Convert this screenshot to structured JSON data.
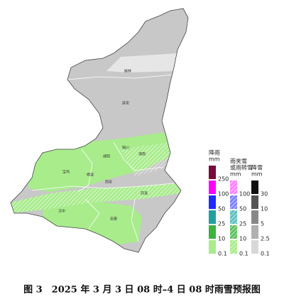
{
  "caption": "图 3　2025 年 3 月 3 日 08 时–4 日 08 时雨雪预报图",
  "cities": [
    {
      "label": "榆林"
    },
    {
      "label": "延安"
    },
    {
      "label": "铜川"
    },
    {
      "label": "渭南"
    },
    {
      "label": "宝鸡"
    },
    {
      "label": "杨凌"
    },
    {
      "label": "咸阳"
    },
    {
      "label": "西安"
    },
    {
      "label": "商洛"
    },
    {
      "label": "汉中"
    },
    {
      "label": "安康"
    }
  ],
  "legend": [
    {
      "title": [
        "降雨"
      ],
      "unit": "mm",
      "hatch": false,
      "levels": [
        {
          "value": 250,
          "color": "#7a0a3c"
        },
        {
          "value": 100,
          "color": "#ff00ff"
        },
        {
          "value": 50,
          "color": "#1e2cff"
        },
        {
          "value": 25,
          "color": "#1fa0a0"
        },
        {
          "value": 10,
          "color": "#3cb43c"
        },
        {
          "value": 0.1,
          "color": "#a8ec8c"
        }
      ]
    },
    {
      "title": [
        "雨夹雪",
        "或雨转雪"
      ],
      "unit": "mm",
      "hatch": true,
      "levels": [
        {
          "value": 100,
          "color": "#ff80ff"
        },
        {
          "value": 50,
          "color": "#8080ff"
        },
        {
          "value": 25,
          "color": "#60c0c0"
        },
        {
          "value": 10,
          "color": "#60c060"
        },
        {
          "value": 0.1,
          "color": "#a8ec8c"
        }
      ]
    },
    {
      "title": [
        "降雪"
      ],
      "unit": "mm",
      "hatch": false,
      "levels": [
        {
          "value": 30,
          "color": "#111111"
        },
        {
          "value": 10,
          "color": "#555555"
        },
        {
          "value": 5,
          "color": "#888888"
        },
        {
          "value": 2.5,
          "color": "#b0b0b0"
        },
        {
          "value": 0.1,
          "color": "#d8d8d8"
        }
      ]
    }
  ]
}
